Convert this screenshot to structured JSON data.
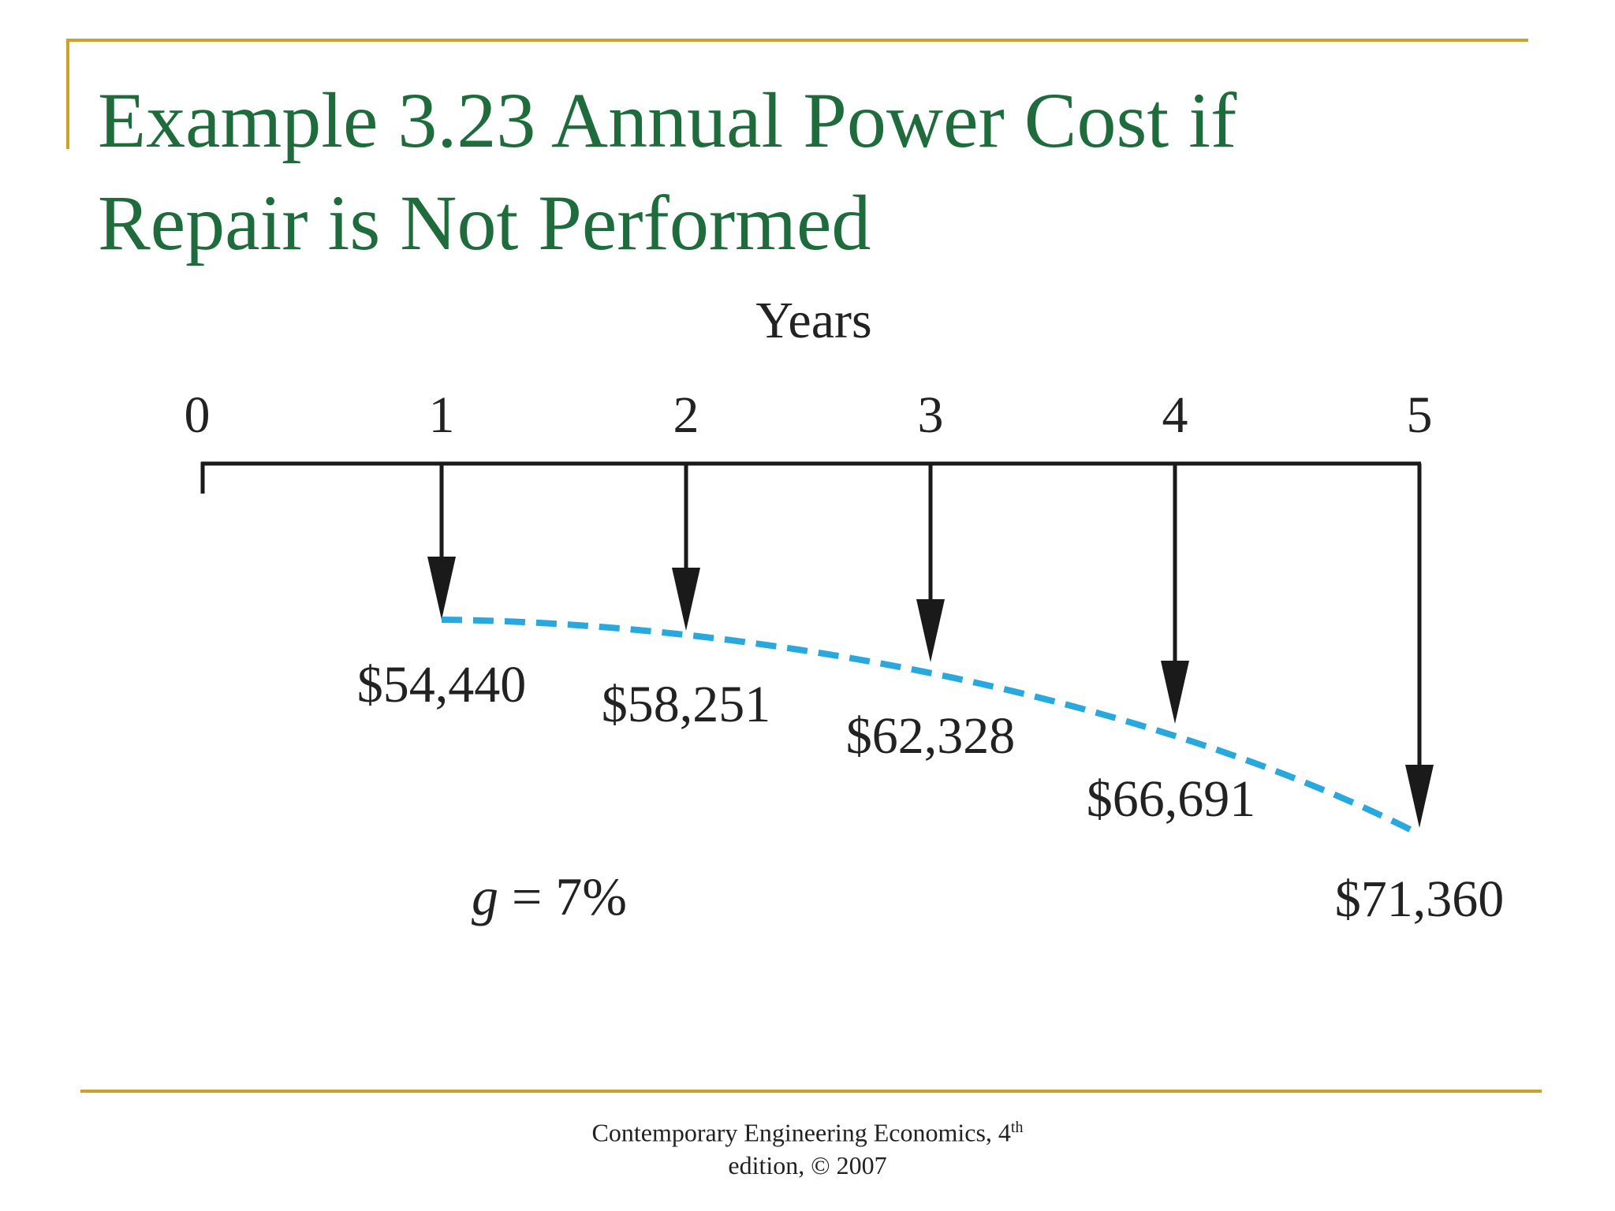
{
  "slide": {
    "title_line1": "Example 3.23 Annual Power Cost if",
    "title_line2": "Repair is Not Performed"
  },
  "diagram": {
    "axis_label": "Years",
    "periods": [
      "0",
      "1",
      "2",
      "3",
      "4",
      "5"
    ],
    "cash_flows": [
      {
        "period": 1,
        "label": "$54,440"
      },
      {
        "period": 2,
        "label": "$58,251"
      },
      {
        "period": 3,
        "label": "$62,328"
      },
      {
        "period": 4,
        "label": "$66,691"
      },
      {
        "period": 5,
        "label": "$71,360"
      }
    ],
    "growth_symbol": "g",
    "growth_text": " = 7%",
    "gradient_color": "#29a8de",
    "line_color": "#1a1a1a"
  },
  "footer": {
    "line1": "Contemporary Engineering Economics, 4",
    "superscript": "th",
    "line2": "edition, © 2007"
  }
}
